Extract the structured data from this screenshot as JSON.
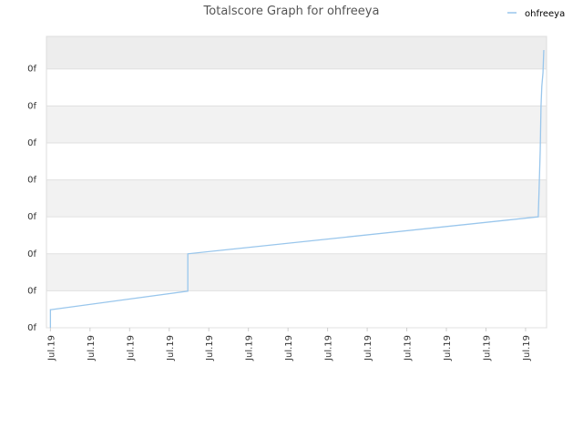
{
  "chart_data": {
    "type": "line",
    "title": "Totalscore Graph for ohfreeya",
    "series": [
      {
        "name": "ohfreeya",
        "color": "#99c6ec",
        "x": [
          0,
          0,
          0.02,
          3.47,
          3.47,
          12.32,
          12.34,
          12.37,
          12.39,
          12.41,
          12.44,
          12.46
        ],
        "values": [
          0,
          0.49,
          0.49,
          0.99,
          2.0,
          3.0,
          3.69,
          4.8,
          5.99,
          6.53,
          6.9,
          7.51
        ]
      }
    ],
    "xlim": [
      -0.1,
      12.53
    ],
    "xticks": [
      {
        "value": 0,
        "label": "Jul.19"
      },
      {
        "value": 1,
        "label": "Jul.19"
      },
      {
        "value": 2,
        "label": "Jul.19"
      },
      {
        "value": 3,
        "label": "Jul.19"
      },
      {
        "value": 4,
        "label": "Jul.19"
      },
      {
        "value": 5,
        "label": "Jul.19"
      },
      {
        "value": 6,
        "label": "Jul.19"
      },
      {
        "value": 7,
        "label": "Jul.19"
      },
      {
        "value": 8,
        "label": "Jul.19"
      },
      {
        "value": 9,
        "label": "Jul.19"
      },
      {
        "value": 10,
        "label": "Jul.19"
      },
      {
        "value": 11,
        "label": "Jul.19"
      },
      {
        "value": 12,
        "label": "Jul.19"
      }
    ],
    "ylim": [
      0,
      7.88
    ],
    "yticks": [
      {
        "value": 0,
        "label": "0f"
      },
      {
        "value": 1,
        "label": "0f"
      },
      {
        "value": 2,
        "label": "0f"
      },
      {
        "value": 3,
        "label": "0f"
      },
      {
        "value": 4,
        "label": "0f"
      },
      {
        "value": 5,
        "label": "0f"
      },
      {
        "value": 6,
        "label": "0f"
      },
      {
        "value": 7,
        "label": "0f"
      }
    ],
    "grid": true,
    "legend": "top-right"
  }
}
